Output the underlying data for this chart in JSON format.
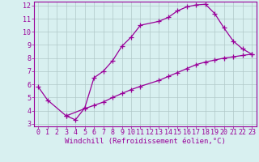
{
  "line1_x": [
    0,
    1,
    3,
    4,
    5,
    6,
    7,
    8,
    9,
    10,
    11,
    13,
    14,
    15,
    16,
    17,
    18,
    19,
    20,
    21,
    22,
    23
  ],
  "line1_y": [
    5.8,
    4.8,
    3.6,
    3.3,
    4.2,
    6.5,
    7.0,
    7.8,
    8.9,
    9.6,
    10.5,
    10.8,
    11.1,
    11.6,
    11.9,
    12.05,
    12.1,
    11.4,
    10.3,
    9.3,
    8.7,
    8.3
  ],
  "line2_x": [
    3,
    5,
    6,
    7,
    8,
    9,
    10,
    11,
    13,
    14,
    15,
    16,
    17,
    18,
    19,
    20,
    21,
    22,
    23
  ],
  "line2_y": [
    3.6,
    4.15,
    4.4,
    4.65,
    5.0,
    5.3,
    5.6,
    5.85,
    6.3,
    6.6,
    6.9,
    7.2,
    7.5,
    7.7,
    7.85,
    8.0,
    8.1,
    8.2,
    8.3
  ],
  "line_color": "#990099",
  "bg_color": "#d8f0f0",
  "grid_color": "#aaccaa",
  "xlabel": "Windchill (Refroidissement éolien,°C)",
  "xlim": [
    -0.5,
    23.5
  ],
  "ylim": [
    2.8,
    12.3
  ],
  "xticks": [
    0,
    1,
    2,
    3,
    4,
    5,
    6,
    7,
    8,
    9,
    10,
    11,
    12,
    13,
    14,
    15,
    16,
    17,
    18,
    19,
    20,
    21,
    22,
    23
  ],
  "yticks": [
    3,
    4,
    5,
    6,
    7,
    8,
    9,
    10,
    11,
    12
  ],
  "xlabel_fontsize": 6.5,
  "tick_fontsize": 6,
  "marker": "+",
  "markersize": 4,
  "linewidth": 0.9
}
